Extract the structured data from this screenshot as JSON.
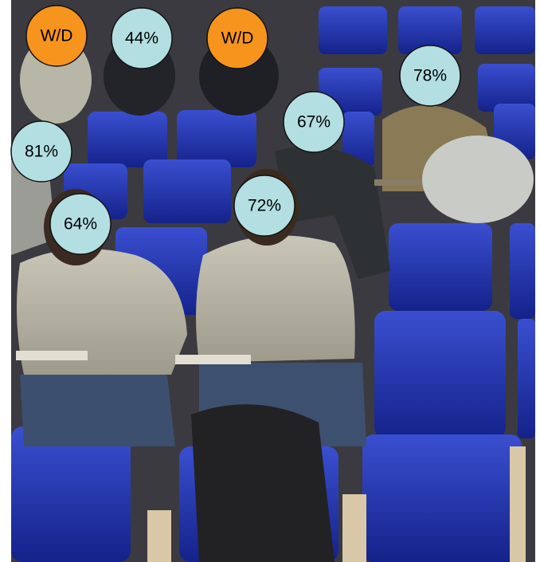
{
  "labels": [
    "W/D",
    "44%",
    "W/D",
    "78%",
    "67%",
    "81%",
    "72%",
    "64%"
  ]
}
